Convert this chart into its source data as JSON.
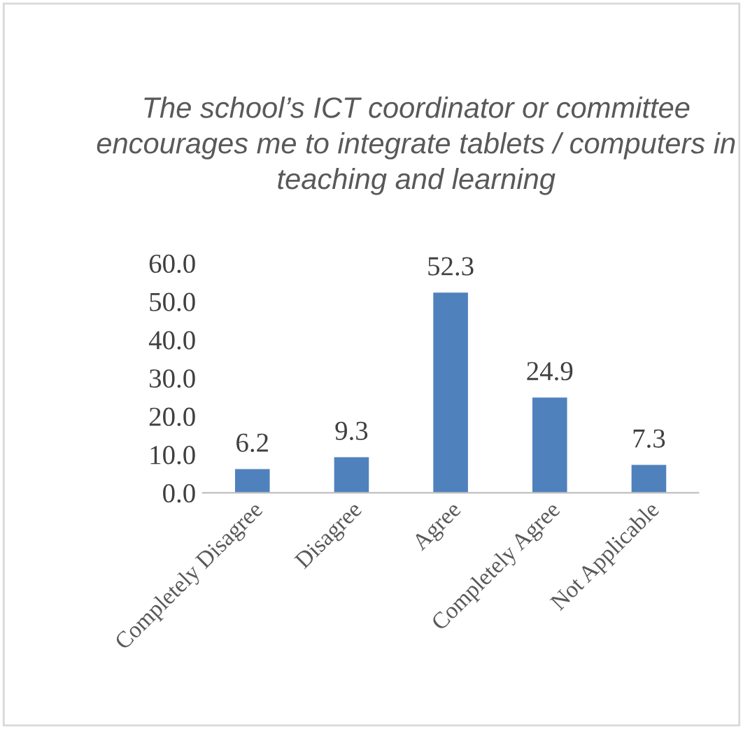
{
  "chart_data": {
    "type": "bar",
    "title": "The school’s ICT coordinator or committee encourages me to integrate tablets / computers in teaching and learning",
    "categories": [
      "Completely Disagree",
      "Disagree",
      "Agree",
      "Completely Agree",
      "Not Applicable"
    ],
    "values": [
      6.2,
      9.3,
      52.3,
      24.9,
      7.3
    ],
    "color": "#4f81bd",
    "ylim": [
      0,
      60
    ],
    "yticks": [
      {
        "value": 0,
        "label": "0.0"
      },
      {
        "value": 10,
        "label": "10.0"
      },
      {
        "value": 20,
        "label": "20.0"
      },
      {
        "value": 30,
        "label": "30.0"
      },
      {
        "value": 40,
        "label": "40.0"
      },
      {
        "value": 50,
        "label": "50.0"
      },
      {
        "value": 60,
        "label": "60.0"
      }
    ],
    "value_labels": [
      "6.2",
      "9.3",
      "52.3",
      "24.9",
      "7.3"
    ],
    "grid": false,
    "legend": false
  }
}
